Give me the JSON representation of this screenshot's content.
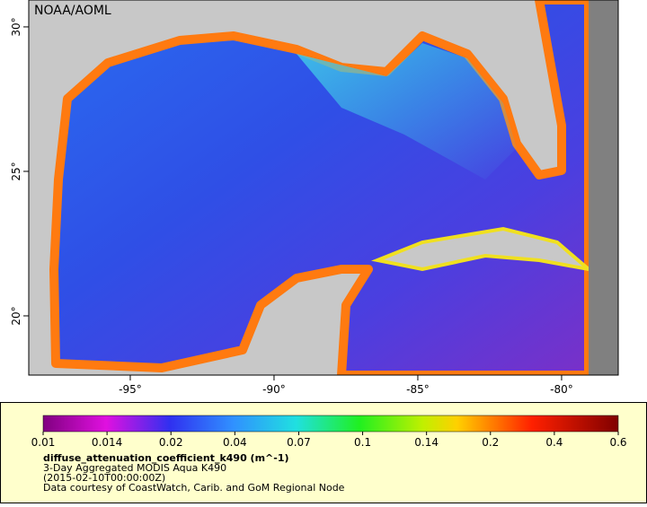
{
  "map": {
    "credit": "NOAA/AOML",
    "xlim": [
      -98.53,
      -78.03
    ],
    "ylim": [
      17.95,
      30.93
    ],
    "xticks": [
      {
        "value": -95,
        "label": "-95°"
      },
      {
        "value": -90,
        "label": "-90°"
      },
      {
        "value": -85,
        "label": "-85°"
      },
      {
        "value": -80,
        "label": "-80°"
      }
    ],
    "yticks": [
      {
        "value": 20,
        "label": "20°"
      },
      {
        "value": 25,
        "label": "25°"
      },
      {
        "value": 30,
        "label": "30°"
      }
    ]
  },
  "colorbar": {
    "ticks": [
      0.01,
      0.014,
      0.02,
      0.04,
      0.07,
      0.1,
      0.14,
      0.2,
      0.4,
      0.6
    ]
  },
  "caption": {
    "variable": "diffuse_attenuation_coefficient_k490 (m^-1)",
    "description": "3-Day Aggregated MODIS Aqua K490",
    "time": "(2015-02-10T00:00:00Z)",
    "credit": "Data courtesy of CoastWatch, Carib. and GoM Regional Node"
  }
}
